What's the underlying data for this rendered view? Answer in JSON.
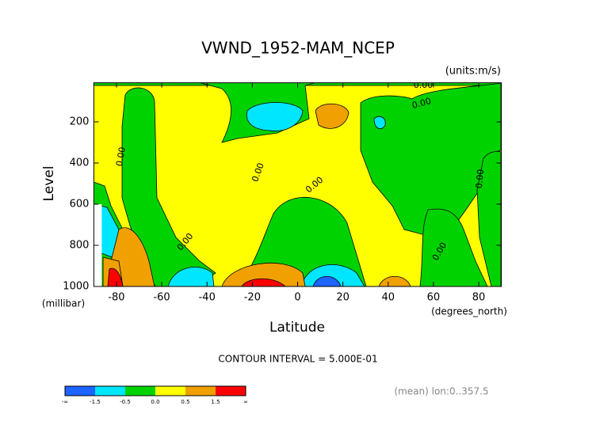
{
  "chart_data": {
    "type": "contour",
    "title": "VWND_1952-MAM_NCEP",
    "subtitle": "(units:m/s)",
    "ylabel": "Level",
    "yunits": "(millibar)",
    "xlabel": "Latitude",
    "xunits": "(degrees_north)",
    "xlim": [
      -90,
      90
    ],
    "xticks": [
      -80,
      -60,
      -40,
      -20,
      0,
      20,
      40,
      60,
      80
    ],
    "ylim": [
      1000,
      10
    ],
    "yticks": [
      200,
      400,
      600,
      800,
      1000
    ],
    "contour_labels": [
      "0.00",
      "0.00",
      "0.00",
      "0.00",
      "0.00",
      "0.00",
      "0.00",
      "0.00"
    ],
    "contour_interval": "CONTOUR INTERVAL = 5.000E-01",
    "note": "(mean) lon:0..357.5",
    "colorbar": {
      "labels": [
        "-∞",
        "-1.5",
        "-0.5",
        "0.0",
        "0.5",
        "1.5",
        "∞"
      ],
      "colors": [
        "#1e64ff",
        "#00e6ff",
        "#00d200",
        "#ffff00",
        "#f0a000",
        "#ff0000"
      ]
    }
  }
}
